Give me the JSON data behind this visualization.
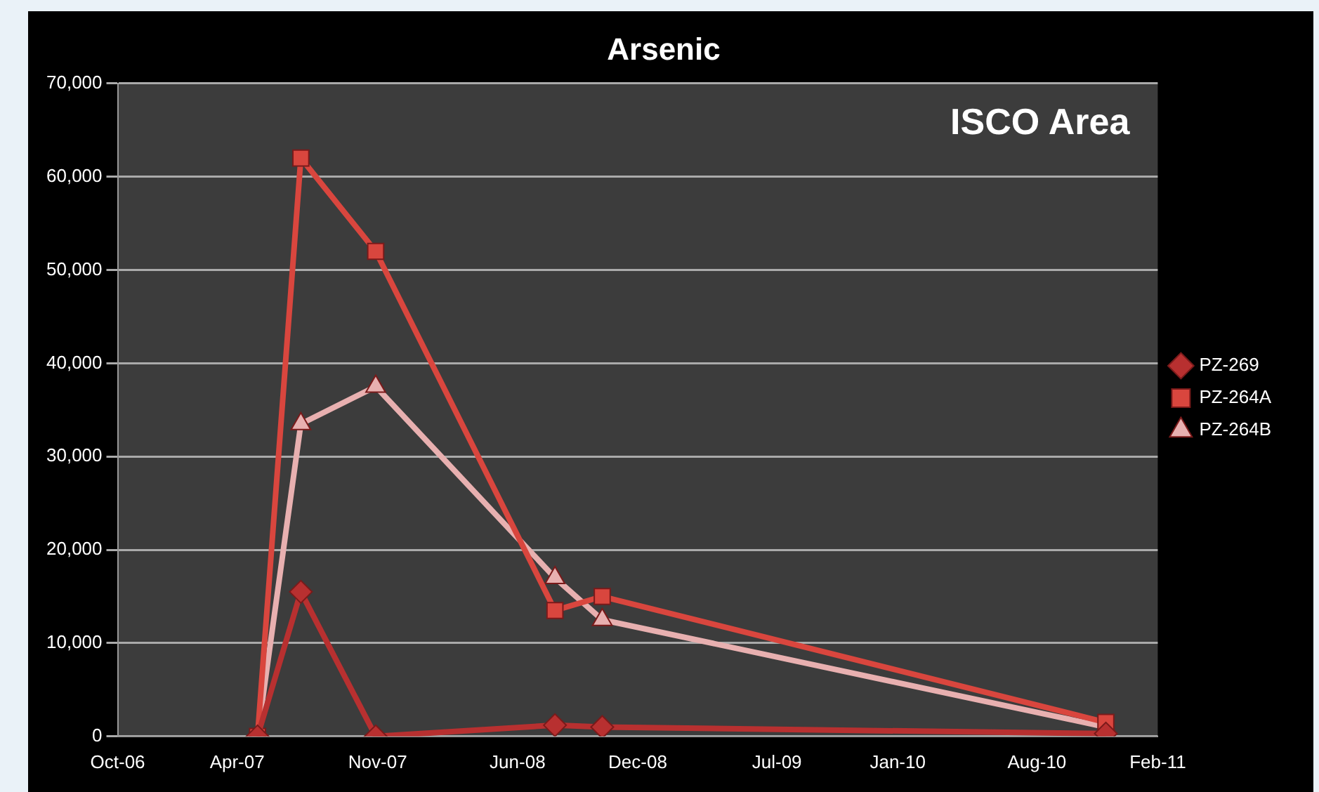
{
  "chart_data": {
    "type": "line",
    "title": "Arsenic",
    "annotations": [
      "ISCO Area"
    ],
    "xlim": [
      "2006-10-01",
      "2011-02-01"
    ],
    "xticks": [
      {
        "value": "2006-10-01",
        "label": "Oct-06"
      },
      {
        "value": "2007-04-01",
        "label": "Apr-07"
      },
      {
        "value": "2007-11-01",
        "label": "Nov-07"
      },
      {
        "value": "2008-06-01",
        "label": "Jun-08"
      },
      {
        "value": "2008-12-01",
        "label": "Dec-08"
      },
      {
        "value": "2009-07-01",
        "label": "Jul-09"
      },
      {
        "value": "2010-01-01",
        "label": "Jan-10"
      },
      {
        "value": "2010-08-01",
        "label": "Aug-10"
      },
      {
        "value": "2011-02-01",
        "label": "Feb-11"
      }
    ],
    "x": [
      "2007-05-02",
      "2007-07-07",
      "2007-10-29",
      "2008-07-28",
      "2008-10-08",
      "2010-11-14"
    ],
    "ylim": [
      0,
      70000
    ],
    "yticks": [
      {
        "value": 0,
        "label": "0"
      },
      {
        "value": 10000,
        "label": "10,000"
      },
      {
        "value": 20000,
        "label": "20,000"
      },
      {
        "value": 30000,
        "label": "30,000"
      },
      {
        "value": 40000,
        "label": "40,000"
      },
      {
        "value": 50000,
        "label": "50,000"
      },
      {
        "value": 60000,
        "label": "60,000"
      },
      {
        "value": 70000,
        "label": "70,000"
      }
    ],
    "grid": "y",
    "legend": "right",
    "line_style": "solid",
    "series": [
      {
        "name": "PZ-269",
        "color": "#b83030",
        "marker": "diamond",
        "values": [
          0,
          15500,
          0,
          1200,
          1000,
          300
        ]
      },
      {
        "name": "PZ-264A",
        "color": "#d9463e",
        "marker": "square",
        "values": [
          0,
          62000,
          52000,
          13500,
          15000,
          1500
        ]
      },
      {
        "name": "PZ-264B",
        "color": "#e8b0b0",
        "marker": "triangle",
        "values": [
          0,
          33500,
          37500,
          17000,
          12500,
          1000
        ]
      }
    ]
  }
}
